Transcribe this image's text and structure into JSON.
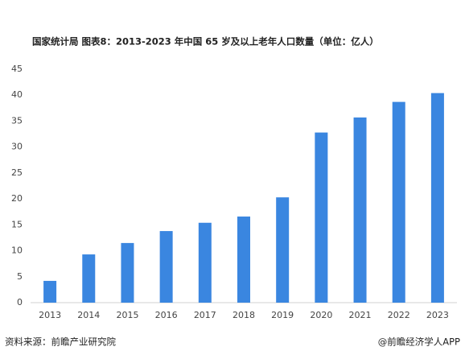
{
  "chart_data": {
    "type": "bar",
    "title": "国家统计局  图表8：2013-2023 年中国 65 岁及以上老年人口数量（单位：亿人）",
    "categories": [
      "2013",
      "2014",
      "2015",
      "2016",
      "2017",
      "2018",
      "2019",
      "2020",
      "2021",
      "2022",
      "2023"
    ],
    "values": [
      4.2,
      9.3,
      11.5,
      13.8,
      15.4,
      16.6,
      20.3,
      32.8,
      35.7,
      38.7,
      40.4
    ],
    "color": "#3a86e0",
    "ylim": [
      0,
      45
    ],
    "yticks": [
      0,
      5,
      10,
      15,
      20,
      25,
      30,
      35,
      40,
      45
    ],
    "grid": false,
    "source": "资料来源：前瞻产业研究院",
    "credit": "@前瞻经济学人APP"
  }
}
